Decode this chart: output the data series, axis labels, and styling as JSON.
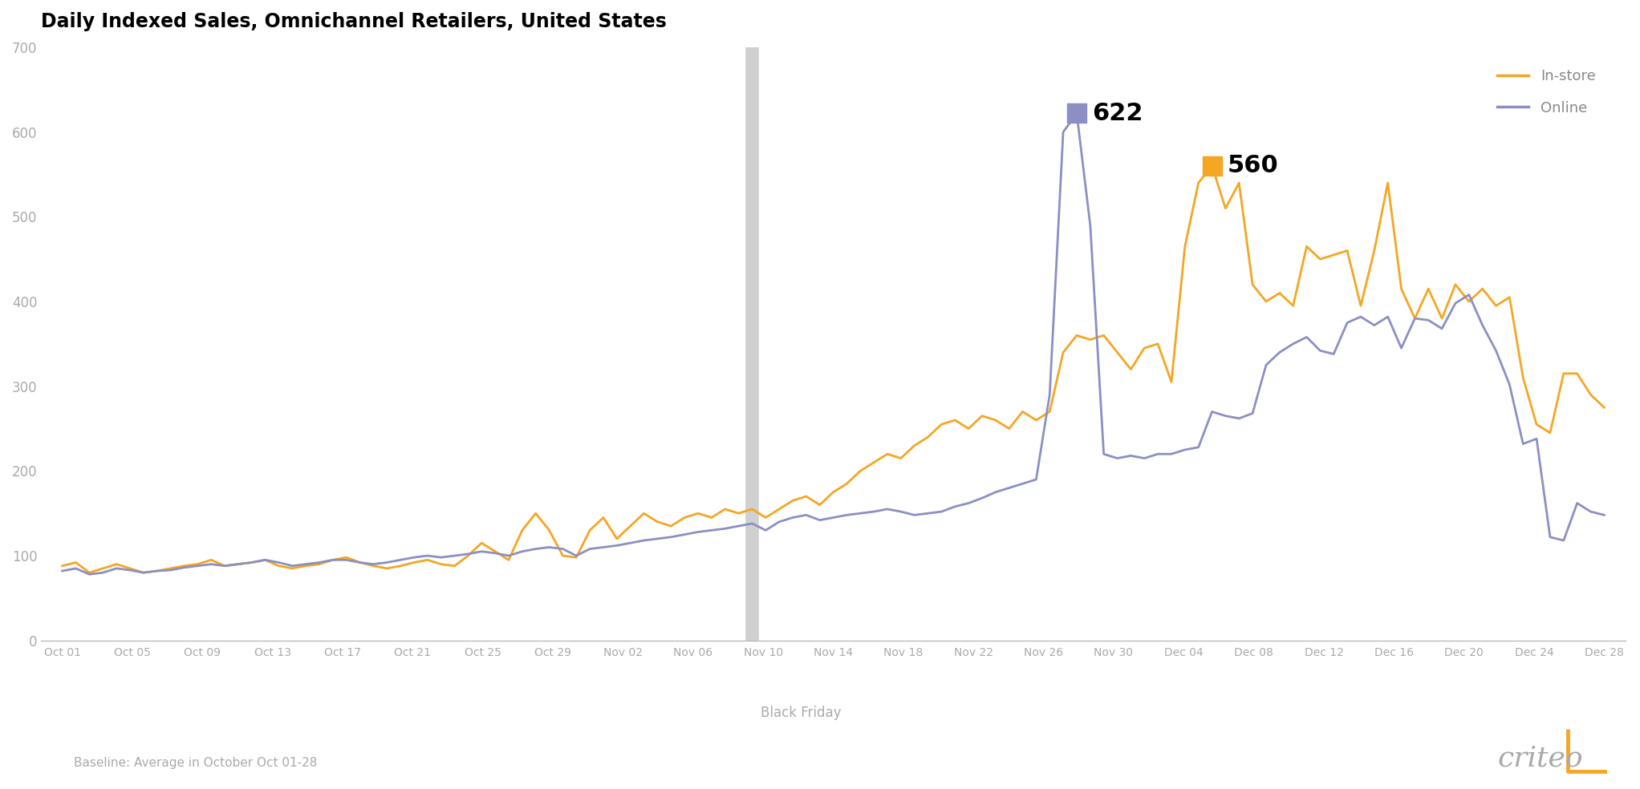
{
  "title": "Daily Indexed Sales, Omnichannel Retailers, United States",
  "baseline_text": "Baseline: Average in October Oct 01-28",
  "black_friday_label": "Black Friday",
  "instore_color": "#F5A623",
  "online_color": "#8B8FC4",
  "black_friday_line_color": "#D0D0D0",
  "tick_label_color": "#AAAAAA",
  "background_color": "#FFFFFF",
  "ylim": [
    0,
    700
  ],
  "yticks": [
    0,
    100,
    200,
    300,
    400,
    500,
    600,
    700
  ],
  "xtick_labels": [
    "Oct 01",
    "Oct 05",
    "Oct 09",
    "Oct 13",
    "Oct 17",
    "Oct 21",
    "Oct 25",
    "Oct 29",
    "Nov 02",
    "Nov 06",
    "Nov 10",
    "Nov 14",
    "Nov 18",
    "Nov 22",
    "Nov 26",
    "Nov 30",
    "Dec 04",
    "Dec 08",
    "Dec 12",
    "Dec 16",
    "Dec 20",
    "Dec 24",
    "Dec 28"
  ],
  "online_peak_label": "622",
  "instore_peak_label": "560",
  "instore_values": [
    88,
    92,
    80,
    85,
    90,
    85,
    80,
    82,
    85,
    88,
    90,
    95,
    88,
    90,
    92,
    95,
    88,
    85,
    88,
    90,
    95,
    98,
    92,
    88,
    85,
    88,
    92,
    95,
    90,
    88,
    100,
    115,
    105,
    95,
    130,
    150,
    130,
    100,
    98,
    130,
    145,
    120,
    135,
    150,
    140,
    135,
    145,
    150,
    145,
    155,
    150,
    155,
    145,
    155,
    165,
    170,
    160,
    175,
    185,
    200,
    210,
    220,
    215,
    230,
    240,
    255,
    260,
    250,
    265,
    260,
    250,
    270,
    260,
    270,
    340,
    360,
    355,
    360,
    340,
    320,
    345,
    350,
    305,
    465,
    540,
    560,
    510,
    540,
    420,
    400,
    410,
    395,
    465,
    450,
    455,
    460,
    395,
    460,
    540,
    415,
    380,
    415,
    380,
    420,
    400,
    415,
    395,
    405,
    310,
    255,
    245,
    315,
    315,
    290,
    275
  ],
  "online_values": [
    82,
    85,
    78,
    80,
    85,
    83,
    80,
    82,
    83,
    86,
    88,
    90,
    88,
    90,
    92,
    95,
    92,
    88,
    90,
    92,
    95,
    95,
    92,
    90,
    92,
    95,
    98,
    100,
    98,
    100,
    102,
    105,
    103,
    100,
    105,
    108,
    110,
    108,
    100,
    108,
    110,
    112,
    115,
    118,
    120,
    122,
    125,
    128,
    130,
    132,
    135,
    138,
    130,
    140,
    145,
    148,
    142,
    145,
    148,
    150,
    152,
    155,
    152,
    148,
    150,
    152,
    158,
    162,
    168,
    175,
    180,
    185,
    190,
    290,
    600,
    622,
    490,
    220,
    215,
    218,
    215,
    220,
    220,
    225,
    228,
    270,
    265,
    262,
    268,
    325,
    340,
    350,
    358,
    342,
    338,
    375,
    382,
    372,
    382,
    345,
    380,
    378,
    368,
    398,
    408,
    372,
    342,
    302,
    232,
    238,
    122,
    118,
    162,
    152,
    148
  ]
}
